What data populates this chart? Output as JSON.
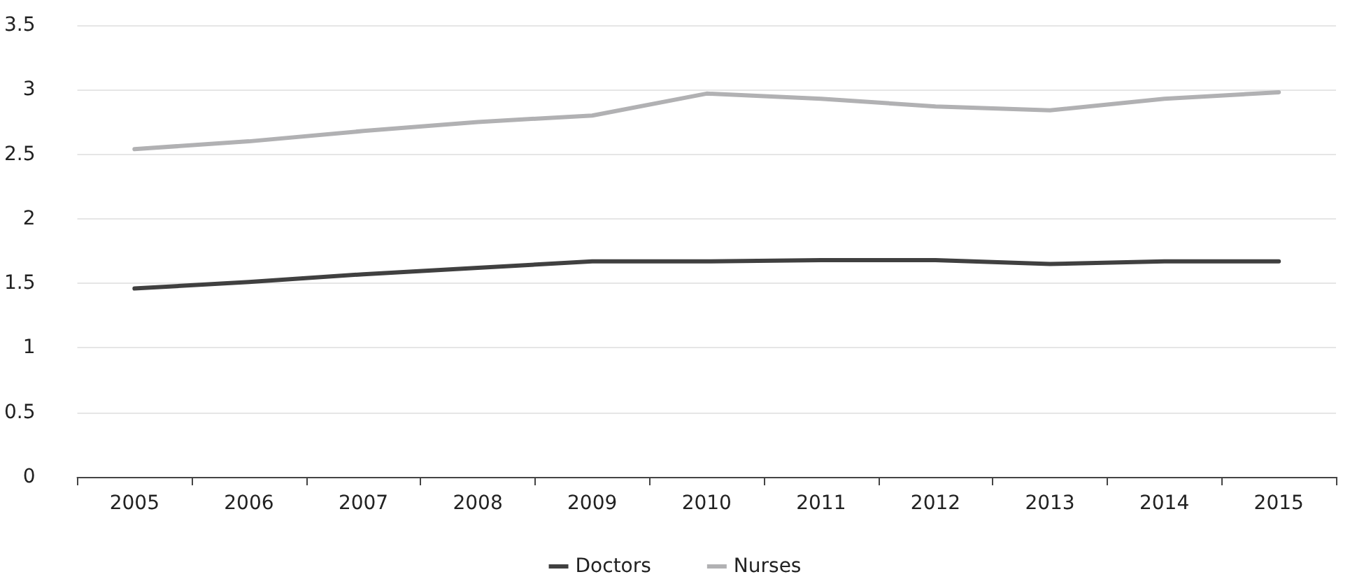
{
  "chart_data": {
    "type": "line",
    "categories": [
      "2005",
      "2006",
      "2007",
      "2008",
      "2009",
      "2010",
      "2011",
      "2012",
      "2013",
      "2014",
      "2015"
    ],
    "series": [
      {
        "name": "Doctors",
        "color": "#404040",
        "values": [
          1.46,
          1.51,
          1.57,
          1.62,
          1.67,
          1.67,
          1.68,
          1.68,
          1.65,
          1.67,
          1.67
        ]
      },
      {
        "name": "Nurses",
        "color": "#b1b1b3",
        "values": [
          2.54,
          2.6,
          2.68,
          2.75,
          2.8,
          2.97,
          2.93,
          2.87,
          2.84,
          2.93,
          2.98
        ]
      }
    ],
    "ylim": [
      0,
      3.5
    ],
    "yticks": [
      0,
      0.5,
      1,
      1.5,
      2,
      2.5,
      3,
      3.5
    ],
    "grid": "y",
    "legend": "bottom",
    "marker": "none",
    "line_style": "solid"
  }
}
